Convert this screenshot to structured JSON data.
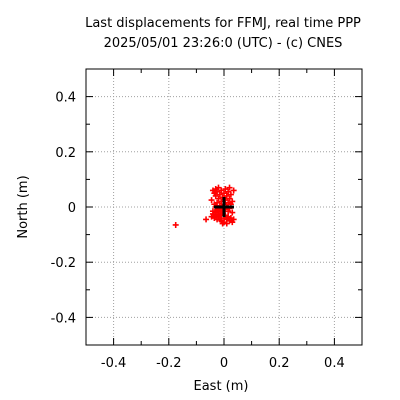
{
  "chart_data": {
    "type": "scatter",
    "title": "Last displacements for FFMJ, real time PPP",
    "subtitle": "2025/05/01 23:26:0 (UTC) - (c) CNES",
    "xlabel": "East (m)",
    "ylabel": "North (m)",
    "xlim": [
      -0.5,
      0.5
    ],
    "ylim": [
      -0.5,
      0.5
    ],
    "x_ticks": [
      -0.4,
      -0.2,
      0,
      0.2,
      0.4
    ],
    "x_tick_labels": [
      "-0.4",
      "-0.2",
      "0",
      "0.2",
      "0.4"
    ],
    "y_ticks": [
      -0.4,
      -0.2,
      0,
      0.2,
      0.4
    ],
    "y_tick_labels": [
      "-0.4",
      "-0.2",
      "0",
      "0.2",
      "0.4"
    ],
    "grid": true,
    "marker_color": "#ff0000",
    "reference_color": "#000000",
    "reference_point": {
      "x": 0.0,
      "y": 0.0
    },
    "points": [
      {
        "x": -0.175,
        "y": -0.065
      },
      {
        "x": -0.065,
        "y": -0.045
      },
      {
        "x": -0.045,
        "y": -0.035
      },
      {
        "x": -0.04,
        "y": -0.025
      },
      {
        "x": -0.035,
        "y": -0.04
      },
      {
        "x": -0.03,
        "y": -0.03
      },
      {
        "x": -0.03,
        "y": -0.02
      },
      {
        "x": -0.025,
        "y": -0.045
      },
      {
        "x": -0.025,
        "y": -0.01
      },
      {
        "x": -0.02,
        "y": -0.035
      },
      {
        "x": -0.02,
        "y": -0.025
      },
      {
        "x": -0.015,
        "y": -0.015
      },
      {
        "x": -0.015,
        "y": -0.045
      },
      {
        "x": -0.01,
        "y": -0.03
      },
      {
        "x": -0.01,
        "y": -0.05
      },
      {
        "x": -0.005,
        "y": -0.02
      },
      {
        "x": 0.0,
        "y": -0.04
      },
      {
        "x": 0.0,
        "y": -0.055
      },
      {
        "x": 0.005,
        "y": -0.03
      },
      {
        "x": 0.01,
        "y": -0.045
      },
      {
        "x": 0.01,
        "y": -0.06
      },
      {
        "x": 0.015,
        "y": -0.035
      },
      {
        "x": 0.02,
        "y": -0.05
      },
      {
        "x": 0.025,
        "y": -0.04
      },
      {
        "x": 0.03,
        "y": -0.055
      },
      {
        "x": -0.04,
        "y": 0.06
      },
      {
        "x": -0.035,
        "y": 0.05
      },
      {
        "x": -0.03,
        "y": 0.065
      },
      {
        "x": -0.03,
        "y": 0.04
      },
      {
        "x": -0.025,
        "y": 0.055
      },
      {
        "x": -0.02,
        "y": 0.07
      },
      {
        "x": -0.02,
        "y": 0.03
      },
      {
        "x": -0.015,
        "y": 0.045
      },
      {
        "x": -0.01,
        "y": 0.06
      },
      {
        "x": -0.01,
        "y": 0.02
      },
      {
        "x": -0.005,
        "y": 0.035
      },
      {
        "x": 0.0,
        "y": 0.05
      },
      {
        "x": 0.005,
        "y": 0.025
      },
      {
        "x": 0.005,
        "y": 0.065
      },
      {
        "x": 0.01,
        "y": 0.04
      },
      {
        "x": 0.015,
        "y": 0.055
      },
      {
        "x": 0.015,
        "y": 0.015
      },
      {
        "x": 0.02,
        "y": 0.03
      },
      {
        "x": 0.02,
        "y": 0.07
      },
      {
        "x": 0.025,
        "y": 0.045
      },
      {
        "x": 0.025,
        "y": 0.01
      },
      {
        "x": -0.035,
        "y": 0.01
      },
      {
        "x": -0.03,
        "y": 0.0
      },
      {
        "x": -0.025,
        "y": 0.015
      },
      {
        "x": -0.02,
        "y": -0.005
      },
      {
        "x": -0.015,
        "y": 0.005
      },
      {
        "x": -0.01,
        "y": -0.01
      },
      {
        "x": -0.005,
        "y": 0.0
      },
      {
        "x": 0.0,
        "y": 0.01
      },
      {
        "x": 0.005,
        "y": -0.005
      },
      {
        "x": 0.01,
        "y": 0.0
      },
      {
        "x": 0.015,
        "y": -0.015
      },
      {
        "x": 0.02,
        "y": -0.005
      },
      {
        "x": 0.03,
        "y": -0.02
      },
      {
        "x": 0.03,
        "y": 0.02
      },
      {
        "x": -0.04,
        "y": -0.015
      },
      {
        "x": -0.045,
        "y": 0.025
      },
      {
        "x": -0.005,
        "y": -0.06
      },
      {
        "x": 0.035,
        "y": -0.045
      },
      {
        "x": 0.035,
        "y": 0.06
      }
    ]
  }
}
